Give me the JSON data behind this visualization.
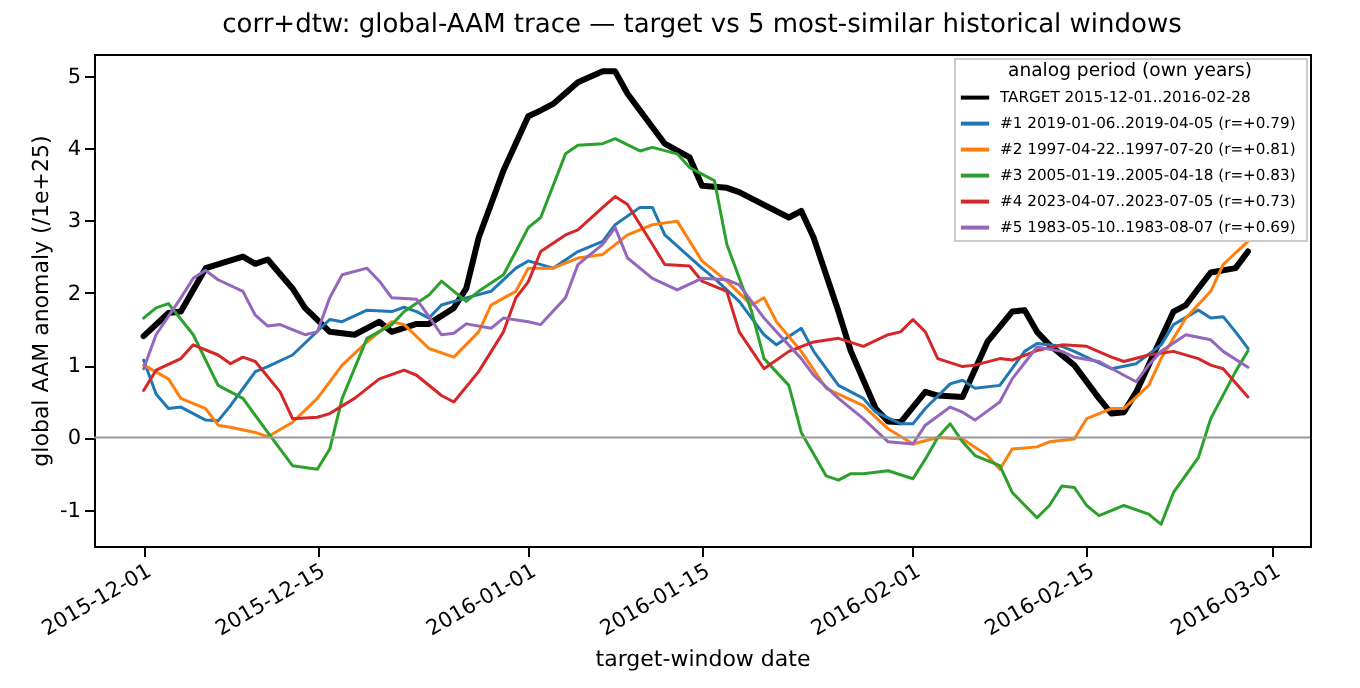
{
  "chart_data": {
    "type": "line",
    "title": "corr+dtw: global-AAM trace — target vs 5 most-similar historical windows",
    "xlabel": "target-window date",
    "ylabel": "global AAM anomaly (/1e+25)",
    "legend_title": "analog period (own years)",
    "legend": "top right",
    "grid": false,
    "line_style": "solid",
    "marker": "none",
    "xlim": [
      "2015-11-27",
      "2016-03-04"
    ],
    "xticks": [
      {
        "value": "2015-12-01",
        "label": "2015-12-01"
      },
      {
        "value": "2015-12-15",
        "label": "2015-12-15"
      },
      {
        "value": "2016-01-01",
        "label": "2016-01-01"
      },
      {
        "value": "2016-01-15",
        "label": "2016-01-15"
      },
      {
        "value": "2016-02-01",
        "label": "2016-02-01"
      },
      {
        "value": "2016-02-15",
        "label": "2016-02-15"
      },
      {
        "value": "2016-03-01",
        "label": "2016-03-01"
      }
    ],
    "ylim": [
      -1.5,
      5.3
    ],
    "yticks": [
      -1,
      0,
      1,
      2,
      3,
      4,
      5
    ],
    "ref_lines": [
      {
        "axis": "y",
        "value": 0,
        "color": "#999999"
      }
    ],
    "series": [
      {
        "name": "TARGET 2015-12-01..2016-02-28",
        "color": "#000000",
        "x": [
          "2015-12-01",
          "2015-12-03",
          "2015-12-04",
          "2015-12-06",
          "2015-12-09",
          "2015-12-10",
          "2015-12-11",
          "2015-12-13",
          "2015-12-14",
          "2015-12-16",
          "2015-12-18",
          "2015-12-20",
          "2015-12-21",
          "2015-12-23",
          "2015-12-24",
          "2015-12-26",
          "2015-12-27",
          "2015-12-28",
          "2015-12-30",
          "2016-01-01",
          "2016-01-02",
          "2016-01-03",
          "2016-01-05",
          "2016-01-07",
          "2016-01-08",
          "2016-01-09",
          "2016-01-10",
          "2016-01-12",
          "2016-01-14",
          "2016-01-15",
          "2016-01-17",
          "2016-01-18",
          "2016-01-22",
          "2016-01-23",
          "2016-01-24",
          "2016-01-26",
          "2016-01-27",
          "2016-01-29",
          "2016-01-30",
          "2016-01-31",
          "2016-02-02",
          "2016-02-03",
          "2016-02-05",
          "2016-02-07",
          "2016-02-09",
          "2016-02-10",
          "2016-02-11",
          "2016-02-12",
          "2016-02-14",
          "2016-02-16",
          "2016-02-17",
          "2016-02-18",
          "2016-02-19",
          "2016-02-21",
          "2016-02-22",
          "2016-02-23",
          "2016-02-24",
          "2016-02-25",
          "2016-02-27",
          "2016-02-28"
        ],
        "values": [
          1.4,
          1.72,
          1.74,
          2.34,
          2.5,
          2.4,
          2.46,
          2.06,
          1.79,
          1.46,
          1.42,
          1.6,
          1.46,
          1.57,
          1.57,
          1.79,
          2.06,
          2.76,
          3.69,
          4.44,
          4.52,
          4.61,
          4.91,
          5.06,
          5.06,
          4.75,
          4.52,
          4.06,
          3.87,
          3.48,
          3.45,
          3.39,
          3.04,
          3.13,
          2.76,
          1.74,
          1.19,
          0.4,
          0.22,
          0.21,
          0.63,
          0.58,
          0.56,
          1.32,
          1.74,
          1.76,
          1.46,
          1.28,
          1.0,
          0.54,
          0.33,
          0.35,
          0.63,
          1.37,
          1.74,
          1.83,
          2.06,
          2.28,
          2.34,
          2.57
        ]
      },
      {
        "name": "#1 2019-01-06..2019-04-05  (r=+0.79)",
        "color": "#1f77b4",
        "x": [
          "2015-12-01",
          "2015-12-02",
          "2015-12-03",
          "2015-12-04",
          "2015-12-06",
          "2015-12-07",
          "2015-12-08",
          "2015-12-10",
          "2015-12-11",
          "2015-12-13",
          "2015-12-16",
          "2015-12-17",
          "2015-12-19",
          "2015-12-21",
          "2015-12-22",
          "2015-12-23",
          "2015-12-24",
          "2015-12-25",
          "2015-12-27",
          "2015-12-29",
          "2015-12-31",
          "2016-01-01",
          "2016-01-03",
          "2016-01-05",
          "2016-01-07",
          "2016-01-08",
          "2016-01-10",
          "2016-01-11",
          "2016-01-12",
          "2016-01-15",
          "2016-01-16",
          "2016-01-18",
          "2016-01-20",
          "2016-01-21",
          "2016-01-23",
          "2016-01-24",
          "2016-01-26",
          "2016-01-28",
          "2016-01-29",
          "2016-01-31",
          "2016-02-01",
          "2016-02-02",
          "2016-02-04",
          "2016-02-05",
          "2016-02-06",
          "2016-02-08",
          "2016-02-10",
          "2016-02-11",
          "2016-02-13",
          "2016-02-14",
          "2016-02-17",
          "2016-02-19",
          "2016-02-21",
          "2016-02-22",
          "2016-02-24",
          "2016-02-25",
          "2016-02-26",
          "2016-02-27",
          "2016-02-28"
        ],
        "values": [
          1.07,
          0.6,
          0.4,
          0.42,
          0.24,
          0.23,
          0.44,
          0.91,
          0.98,
          1.14,
          1.63,
          1.6,
          1.76,
          1.74,
          1.8,
          1.74,
          1.65,
          1.83,
          1.93,
          2.02,
          2.34,
          2.44,
          2.34,
          2.57,
          2.71,
          2.94,
          3.18,
          3.18,
          2.8,
          2.34,
          2.2,
          1.88,
          1.42,
          1.28,
          1.51,
          1.19,
          0.72,
          0.54,
          0.35,
          0.19,
          0.19,
          0.4,
          0.74,
          0.79,
          0.68,
          0.72,
          1.19,
          1.3,
          1.26,
          1.19,
          0.95,
          1.02,
          1.28,
          1.56,
          1.76,
          1.65,
          1.67,
          1.46,
          1.23
        ]
      },
      {
        "name": "#2 1997-04-22..1997-07-20  (r=+0.81)",
        "color": "#ff7f0e",
        "x": [
          "2015-12-01",
          "2015-12-03",
          "2015-12-04",
          "2015-12-06",
          "2015-12-07",
          "2015-12-08",
          "2015-12-10",
          "2015-12-11",
          "2015-12-13",
          "2015-12-15",
          "2015-12-17",
          "2015-12-19",
          "2015-12-21",
          "2015-12-22",
          "2015-12-24",
          "2015-12-26",
          "2015-12-28",
          "2015-12-29",
          "2015-12-31",
          "2016-01-01",
          "2016-01-03",
          "2016-01-05",
          "2016-01-07",
          "2016-01-09",
          "2016-01-11",
          "2016-01-13",
          "2016-01-15",
          "2016-01-17",
          "2016-01-19",
          "2016-01-20",
          "2016-01-21",
          "2016-01-23",
          "2016-01-25",
          "2016-01-28",
          "2016-01-30",
          "2016-02-01",
          "2016-02-03",
          "2016-02-05",
          "2016-02-07",
          "2016-02-08",
          "2016-02-09",
          "2016-02-11",
          "2016-02-12",
          "2016-02-14",
          "2016-02-15",
          "2016-02-17",
          "2016-02-18",
          "2016-02-20",
          "2016-02-21",
          "2016-02-23",
          "2016-02-25",
          "2016-02-26",
          "2016-02-28"
        ],
        "values": [
          1.0,
          0.81,
          0.54,
          0.4,
          0.17,
          0.14,
          0.07,
          0.01,
          0.21,
          0.54,
          1.0,
          1.32,
          1.6,
          1.56,
          1.23,
          1.11,
          1.46,
          1.83,
          2.02,
          2.34,
          2.34,
          2.48,
          2.53,
          2.8,
          2.94,
          2.99,
          2.44,
          2.16,
          1.83,
          1.93,
          1.6,
          1.19,
          0.68,
          0.44,
          0.12,
          -0.09,
          0.0,
          -0.02,
          -0.25,
          -0.44,
          -0.16,
          -0.13,
          -0.06,
          -0.02,
          0.26,
          0.4,
          0.4,
          0.72,
          1.09,
          1.65,
          2.02,
          2.39,
          2.71
        ]
      },
      {
        "name": "#3 2005-01-19..2005-04-18  (r=+0.83)",
        "color": "#2ca02c",
        "x": [
          "2015-12-01",
          "2015-12-02",
          "2015-12-03",
          "2015-12-05",
          "2015-12-07",
          "2015-12-09",
          "2015-12-11",
          "2015-12-13",
          "2015-12-15",
          "2015-12-16",
          "2015-12-17",
          "2015-12-19",
          "2015-12-21",
          "2015-12-22",
          "2015-12-24",
          "2015-12-25",
          "2015-12-27",
          "2015-12-28",
          "2015-12-30",
          "2015-12-31",
          "2016-01-01",
          "2016-01-02",
          "2016-01-04",
          "2016-01-05",
          "2016-01-07",
          "2016-01-08",
          "2016-01-10",
          "2016-01-11",
          "2016-01-13",
          "2016-01-14",
          "2016-01-16",
          "2016-01-17",
          "2016-01-19",
          "2016-01-20",
          "2016-01-22",
          "2016-01-23",
          "2016-01-25",
          "2016-01-26",
          "2016-01-27",
          "2016-01-28",
          "2016-01-30",
          "2016-02-01",
          "2016-02-02",
          "2016-02-03",
          "2016-02-04",
          "2016-02-05",
          "2016-02-06",
          "2016-02-08",
          "2016-02-09",
          "2016-02-11",
          "2016-02-12",
          "2016-02-13",
          "2016-02-14",
          "2016-02-15",
          "2016-02-16",
          "2016-02-18",
          "2016-02-20",
          "2016-02-21",
          "2016-02-22",
          "2016-02-24",
          "2016-02-25",
          "2016-02-27",
          "2016-02-28"
        ],
        "values": [
          1.65,
          1.79,
          1.85,
          1.42,
          0.72,
          0.54,
          0.07,
          -0.39,
          -0.44,
          -0.16,
          0.54,
          1.37,
          1.56,
          1.74,
          1.97,
          2.16,
          1.88,
          2.02,
          2.25,
          2.57,
          2.9,
          3.04,
          3.92,
          4.04,
          4.06,
          4.13,
          3.96,
          4.01,
          3.92,
          3.73,
          3.55,
          2.67,
          1.74,
          1.09,
          0.72,
          0.07,
          -0.53,
          -0.59,
          -0.5,
          -0.5,
          -0.46,
          -0.57,
          -0.3,
          0.0,
          0.19,
          -0.06,
          -0.25,
          -0.39,
          -0.76,
          -1.11,
          -0.94,
          -0.67,
          -0.69,
          -0.94,
          -1.08,
          -0.94,
          -1.06,
          -1.2,
          -0.76,
          -0.28,
          0.26,
          0.91,
          1.2
        ]
      },
      {
        "name": "#4 2023-04-07..2023-07-05  (r=+0.73)",
        "color": "#d62728",
        "x": [
          "2015-12-01",
          "2015-12-02",
          "2015-12-04",
          "2015-12-05",
          "2015-12-07",
          "2015-12-08",
          "2015-12-09",
          "2015-12-10",
          "2015-12-12",
          "2015-12-13",
          "2015-12-15",
          "2015-12-16",
          "2015-12-18",
          "2015-12-20",
          "2015-12-22",
          "2015-12-23",
          "2015-12-25",
          "2015-12-26",
          "2015-12-28",
          "2015-12-30",
          "2015-12-31",
          "2016-01-01",
          "2016-01-02",
          "2016-01-04",
          "2016-01-05",
          "2016-01-07",
          "2016-01-08",
          "2016-01-09",
          "2016-01-11",
          "2016-01-12",
          "2016-01-14",
          "2016-01-15",
          "2016-01-17",
          "2016-01-18",
          "2016-01-20",
          "2016-01-22",
          "2016-01-24",
          "2016-01-26",
          "2016-01-28",
          "2016-01-30",
          "2016-01-31",
          "2016-02-01",
          "2016-02-02",
          "2016-02-03",
          "2016-02-05",
          "2016-02-06",
          "2016-02-08",
          "2016-02-09",
          "2016-02-11",
          "2016-02-13",
          "2016-02-15",
          "2016-02-17",
          "2016-02-18",
          "2016-02-20",
          "2016-02-22",
          "2016-02-24",
          "2016-02-25",
          "2016-02-26",
          "2016-02-28"
        ],
        "values": [
          0.65,
          0.93,
          1.09,
          1.28,
          1.14,
          1.02,
          1.11,
          1.05,
          0.63,
          0.26,
          0.28,
          0.33,
          0.54,
          0.81,
          0.93,
          0.86,
          0.58,
          0.49,
          0.91,
          1.46,
          1.93,
          2.15,
          2.57,
          2.8,
          2.87,
          3.18,
          3.33,
          3.22,
          2.67,
          2.39,
          2.37,
          2.16,
          2.02,
          1.46,
          0.95,
          1.19,
          1.32,
          1.37,
          1.26,
          1.42,
          1.46,
          1.63,
          1.46,
          1.09,
          0.98,
          1.0,
          1.09,
          1.07,
          1.2,
          1.28,
          1.26,
          1.11,
          1.05,
          1.14,
          1.19,
          1.09,
          1.0,
          0.95,
          0.56
        ]
      },
      {
        "name": "#5 1983-05-10..1983-08-07  (r=+0.69)",
        "color": "#9467bd",
        "x": [
          "2015-12-01",
          "2015-12-02",
          "2015-12-04",
          "2015-12-05",
          "2015-12-06",
          "2015-12-07",
          "2015-12-09",
          "2015-12-10",
          "2015-12-11",
          "2015-12-12",
          "2015-12-14",
          "2015-12-15",
          "2015-12-16",
          "2015-12-17",
          "2015-12-19",
          "2015-12-20",
          "2015-12-21",
          "2015-12-23",
          "2015-12-24",
          "2015-12-25",
          "2015-12-26",
          "2015-12-27",
          "2015-12-29",
          "2015-12-30",
          "2016-01-01",
          "2016-01-02",
          "2016-01-04",
          "2016-01-05",
          "2016-01-07",
          "2016-01-08",
          "2016-01-09",
          "2016-01-11",
          "2016-01-13",
          "2016-01-15",
          "2016-01-17",
          "2016-01-18",
          "2016-01-20",
          "2016-01-21",
          "2016-01-23",
          "2016-01-24",
          "2016-01-26",
          "2016-01-28",
          "2016-01-30",
          "2016-02-01",
          "2016-02-02",
          "2016-02-04",
          "2016-02-05",
          "2016-02-06",
          "2016-02-08",
          "2016-02-09",
          "2016-02-11",
          "2016-02-13",
          "2016-02-14",
          "2016-02-16",
          "2016-02-18",
          "2016-02-19",
          "2016-02-20",
          "2016-02-21",
          "2016-02-23",
          "2016-02-25",
          "2016-02-26",
          "2016-02-28"
        ],
        "values": [
          0.95,
          1.42,
          1.93,
          2.2,
          2.31,
          2.18,
          2.02,
          1.69,
          1.54,
          1.56,
          1.42,
          1.46,
          1.93,
          2.25,
          2.34,
          2.16,
          1.93,
          1.91,
          1.67,
          1.42,
          1.44,
          1.57,
          1.51,
          1.65,
          1.6,
          1.56,
          1.93,
          2.39,
          2.67,
          2.9,
          2.48,
          2.2,
          2.04,
          2.2,
          2.18,
          2.11,
          1.65,
          1.46,
          1.09,
          0.86,
          0.54,
          0.26,
          -0.06,
          -0.09,
          0.17,
          0.42,
          0.35,
          0.24,
          0.49,
          0.81,
          1.25,
          1.19,
          1.11,
          1.05,
          0.86,
          0.77,
          1.0,
          1.19,
          1.42,
          1.35,
          1.19,
          0.97
        ]
      }
    ]
  }
}
